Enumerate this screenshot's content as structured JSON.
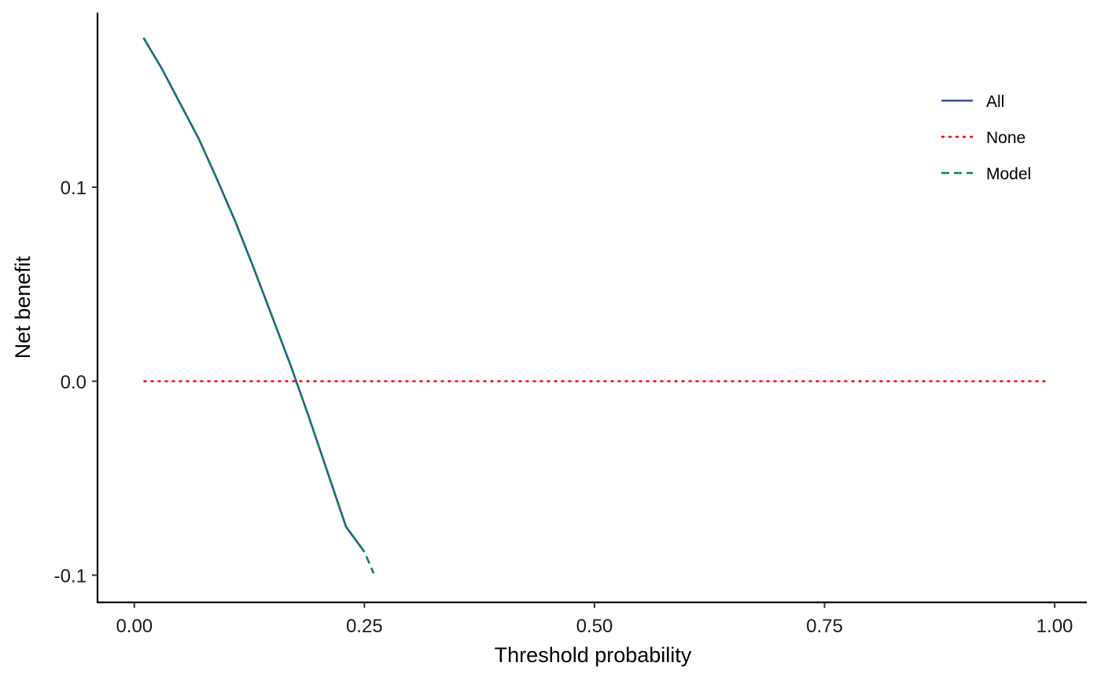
{
  "chart_data": {
    "type": "line",
    "title": "",
    "xlabel": "Threshold probability",
    "ylabel": "Net benefit",
    "xlim": [
      -0.04,
      1.035
    ],
    "ylim": [
      -0.114,
      0.19
    ],
    "x_ticks": [
      0,
      0.25,
      0.5,
      0.75,
      1
    ],
    "x_tick_labels": [
      "0.00",
      "0.25",
      "0.50",
      "0.75",
      "1.00"
    ],
    "y_ticks": [
      -0.1,
      0,
      0.1
    ],
    "y_tick_labels": [
      "-0.1",
      "0.0",
      "0.1"
    ],
    "grid": false,
    "legend": {
      "position": "top-right",
      "entries": [
        "All",
        "None",
        "Model"
      ]
    },
    "series": [
      {
        "name": "All",
        "color": "#3f4aa2",
        "dash": "solid",
        "x": [
          0.01,
          0.03,
          0.05,
          0.07,
          0.09,
          0.11,
          0.13,
          0.15,
          0.17,
          0.19,
          0.21,
          0.23,
          0.25
        ],
        "y": [
          0.177,
          0.161,
          0.143,
          0.125,
          0.104,
          0.082,
          0.058,
          0.033,
          0.008,
          -0.019,
          -0.047,
          -0.075,
          -0.088
        ]
      },
      {
        "name": "None",
        "color": "#ff0000",
        "dash": "dotted",
        "x": [
          0.01,
          0.99
        ],
        "y": [
          0,
          0
        ]
      },
      {
        "name": "Model",
        "color": "#00875a",
        "dash": "dashed",
        "x": [
          0.01,
          0.03,
          0.05,
          0.07,
          0.09,
          0.11,
          0.13,
          0.15,
          0.17,
          0.19,
          0.21,
          0.23,
          0.25,
          0.26
        ],
        "y": [
          0.177,
          0.161,
          0.143,
          0.125,
          0.104,
          0.082,
          0.058,
          0.033,
          0.008,
          -0.019,
          -0.047,
          -0.075,
          -0.088,
          -0.099
        ]
      }
    ]
  }
}
